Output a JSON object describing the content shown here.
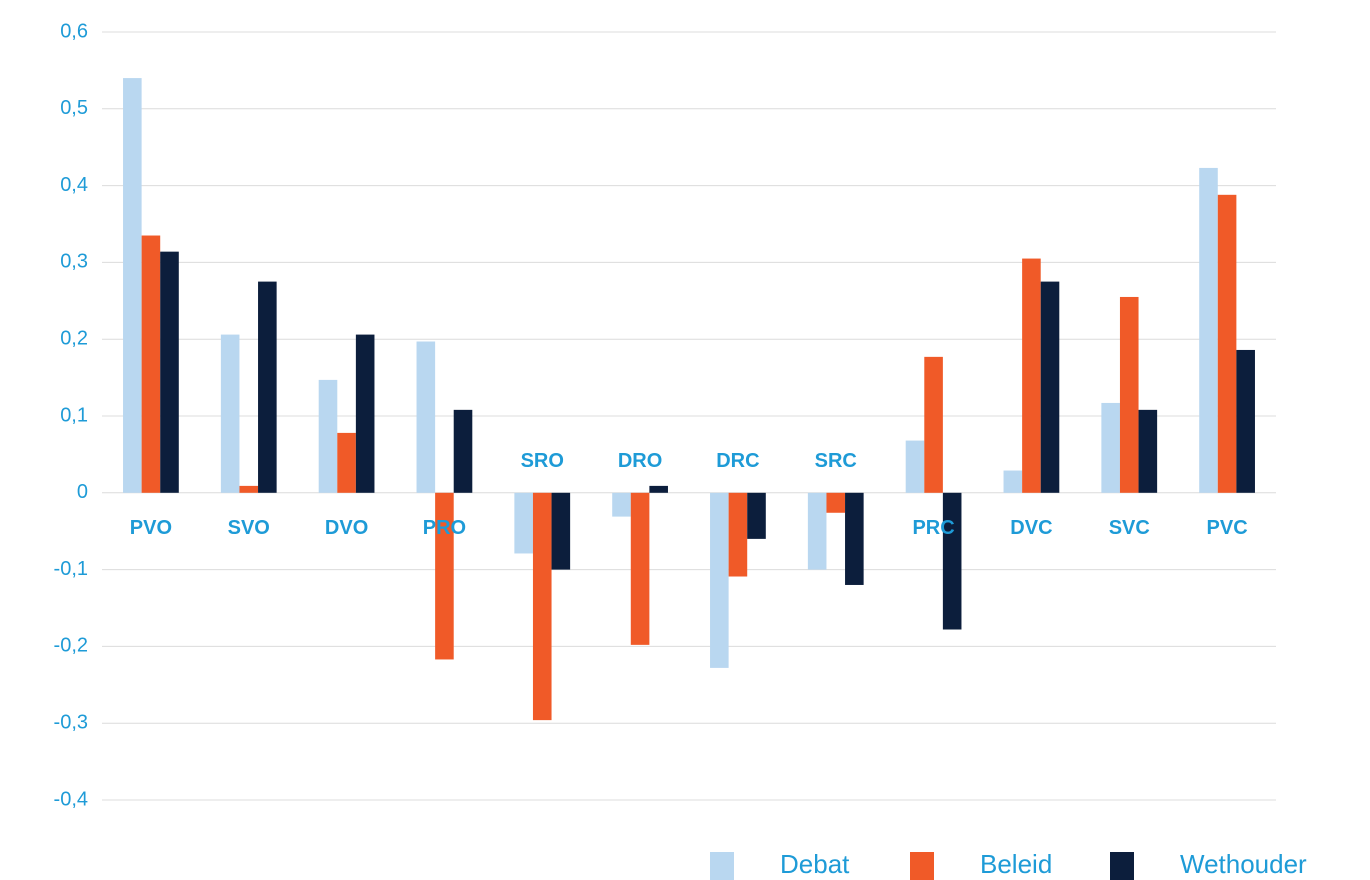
{
  "chart_data": {
    "type": "bar",
    "categories": [
      "PVO",
      "SVO",
      "DVO",
      "PRO",
      "SRO",
      "DRO",
      "DRC",
      "SRC",
      "PRC",
      "DVC",
      "SVC",
      "PVC"
    ],
    "series": [
      {
        "name": "Debat",
        "color": "#b9d7f0",
        "values": [
          0.54,
          0.206,
          0.147,
          0.197,
          -0.079,
          -0.031,
          -0.228,
          -0.1,
          0.068,
          0.029,
          0.117,
          0.423
        ]
      },
      {
        "name": "Beleid",
        "color": "#f05a28",
        "values": [
          0.335,
          0.009,
          0.078,
          -0.217,
          -0.296,
          -0.198,
          -0.109,
          -0.026,
          0.177,
          0.305,
          0.255,
          0.388
        ]
      },
      {
        "name": "Wethouder",
        "color": "#0c1e3c",
        "values": [
          0.314,
          0.275,
          0.206,
          0.108,
          -0.1,
          0.009,
          -0.06,
          -0.12,
          -0.178,
          0.275,
          0.108,
          0.186
        ]
      }
    ],
    "ylim": [
      -0.4,
      0.6
    ],
    "yticks": [
      {
        "value": -0.4,
        "label": "-0,4"
      },
      {
        "value": -0.3,
        "label": "-0,3"
      },
      {
        "value": -0.2,
        "label": "-0,2"
      },
      {
        "value": -0.1,
        "label": "-0,1"
      },
      0,
      {
        "value": 0.1,
        "label": "0,1"
      },
      {
        "value": 0.2,
        "label": "0,2"
      },
      {
        "value": 0.3,
        "label": "0,3"
      },
      {
        "value": 0.4,
        "label": "0,4"
      },
      {
        "value": 0.5,
        "label": "0,5"
      },
      {
        "value": 0.6,
        "label": "0,6"
      }
    ],
    "grid": true,
    "legend": "bottom-right"
  }
}
